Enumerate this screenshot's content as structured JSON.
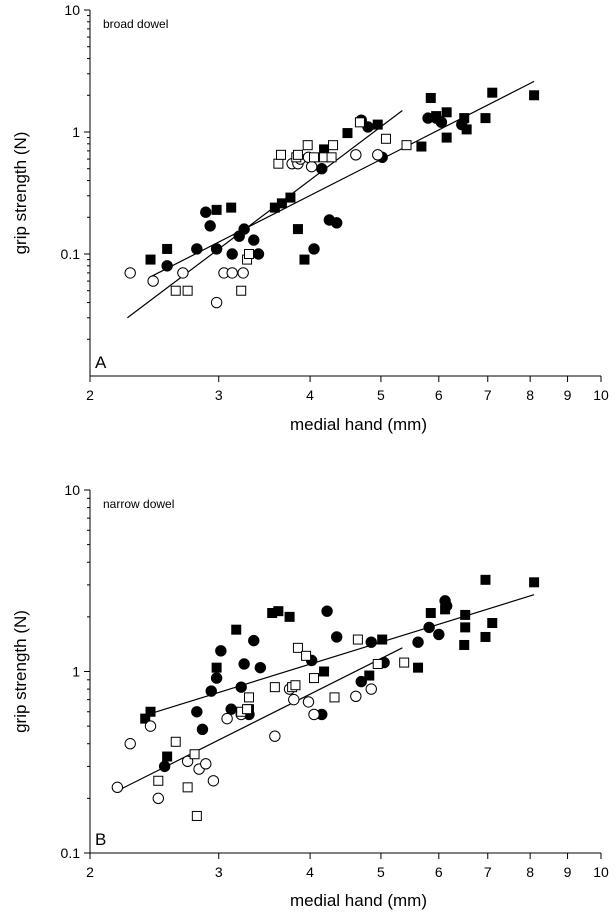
{
  "chart_data": [
    {
      "type": "scatter",
      "title": "broad dowel",
      "panel_label": "A",
      "xlabel": "medial hand (mm)",
      "ylabel": "grip strength (N)",
      "xscale": "log",
      "yscale": "log",
      "xlim": [
        2,
        10
      ],
      "ylim": [
        0.01,
        10
      ],
      "x_ticks": [
        2,
        3,
        4,
        5,
        6,
        7,
        8,
        9,
        10
      ],
      "y_ticks": [
        0.1,
        1,
        10
      ],
      "y_tick_labels": [
        "0.1",
        "1",
        "10"
      ],
      "series": [
        {
          "marker": "filled-square",
          "points": [
            [
              2.42,
              0.09
            ],
            [
              2.55,
              0.11
            ],
            [
              2.98,
              0.23
            ],
            [
              3.12,
              0.24
            ],
            [
              3.58,
              0.24
            ],
            [
              3.66,
              0.26
            ],
            [
              3.76,
              0.29
            ],
            [
              3.85,
              0.16
            ],
            [
              3.93,
              0.09
            ],
            [
              4.18,
              0.72
            ],
            [
              4.5,
              0.98
            ],
            [
              4.95,
              1.15
            ],
            [
              5.68,
              0.76
            ],
            [
              5.85,
              1.9
            ],
            [
              5.95,
              1.35
            ],
            [
              6.15,
              0.9
            ],
            [
              6.15,
              1.45
            ],
            [
              6.5,
              1.3
            ],
            [
              6.55,
              1.05
            ],
            [
              6.95,
              1.3
            ],
            [
              7.1,
              2.1
            ],
            [
              8.1,
              2.0
            ]
          ]
        },
        {
          "marker": "filled-circle",
          "points": [
            [
              2.55,
              0.08
            ],
            [
              2.8,
              0.11
            ],
            [
              2.88,
              0.22
            ],
            [
              2.92,
              0.17
            ],
            [
              2.98,
              0.11
            ],
            [
              3.13,
              0.1
            ],
            [
              3.2,
              0.14
            ],
            [
              3.25,
              0.16
            ],
            [
              3.35,
              0.13
            ],
            [
              3.4,
              0.1
            ],
            [
              4.05,
              0.11
            ],
            [
              4.15,
              0.5
            ],
            [
              4.25,
              0.19
            ],
            [
              4.35,
              0.18
            ],
            [
              4.7,
              1.25
            ],
            [
              4.8,
              1.1
            ],
            [
              5.02,
              0.62
            ],
            [
              5.8,
              1.3
            ],
            [
              5.95,
              1.3
            ],
            [
              6.05,
              1.2
            ],
            [
              6.45,
              1.15
            ]
          ]
        },
        {
          "marker": "open-circle",
          "points": [
            [
              2.27,
              0.07
            ],
            [
              2.44,
              0.06
            ],
            [
              2.68,
              0.07
            ],
            [
              2.98,
              0.04
            ],
            [
              3.05,
              0.07
            ],
            [
              3.13,
              0.07
            ],
            [
              3.24,
              0.07
            ],
            [
              3.78,
              0.55
            ],
            [
              3.85,
              0.55
            ],
            [
              3.88,
              0.6
            ],
            [
              3.98,
              0.62
            ],
            [
              4.02,
              0.52
            ],
            [
              4.62,
              0.65
            ],
            [
              4.95,
              0.65
            ]
          ]
        },
        {
          "marker": "open-square",
          "points": [
            [
              2.62,
              0.05
            ],
            [
              2.72,
              0.05
            ],
            [
              3.22,
              0.05
            ],
            [
              3.28,
              0.09
            ],
            [
              3.3,
              0.1
            ],
            [
              3.62,
              0.55
            ],
            [
              3.65,
              0.65
            ],
            [
              3.83,
              0.62
            ],
            [
              3.85,
              0.65
            ],
            [
              3.97,
              0.78
            ],
            [
              4.05,
              0.62
            ],
            [
              4.18,
              0.62
            ],
            [
              4.28,
              0.62
            ],
            [
              4.3,
              0.78
            ],
            [
              4.68,
              1.2
            ],
            [
              5.08,
              0.88
            ],
            [
              5.42,
              0.78
            ]
          ]
        }
      ],
      "fit_lines": [
        {
          "x": [
            2.42,
            8.1
          ],
          "y": [
            0.065,
            2.6
          ]
        },
        {
          "x": [
            2.25,
            5.35
          ],
          "y": [
            0.03,
            1.5
          ]
        }
      ]
    },
    {
      "type": "scatter",
      "title": "narrow dowel",
      "panel_label": "B",
      "xlabel": "medial hand (mm)",
      "ylabel": "grip strength (N)",
      "xscale": "log",
      "yscale": "log",
      "xlim": [
        2,
        10
      ],
      "ylim": [
        0.1,
        10
      ],
      "x_ticks": [
        2,
        3,
        4,
        5,
        6,
        7,
        8,
        9,
        10
      ],
      "y_ticks": [
        0.1,
        1,
        10
      ],
      "y_tick_labels": [
        "0.1",
        "1",
        "10"
      ],
      "series": [
        {
          "marker": "filled-square",
          "points": [
            [
              2.38,
              0.55
            ],
            [
              2.42,
              0.6
            ],
            [
              2.55,
              0.34
            ],
            [
              2.98,
              1.05
            ],
            [
              3.17,
              1.7
            ],
            [
              3.3,
              0.62
            ],
            [
              3.55,
              2.1
            ],
            [
              3.62,
              2.15
            ],
            [
              3.75,
              2.0
            ],
            [
              4.18,
              1.0
            ],
            [
              4.82,
              0.95
            ],
            [
              5.02,
              1.5
            ],
            [
              5.62,
              1.05
            ],
            [
              5.85,
              2.1
            ],
            [
              6.12,
              2.2
            ],
            [
              6.5,
              1.4
            ],
            [
              6.52,
              1.75
            ],
            [
              6.52,
              2.05
            ],
            [
              6.95,
              3.2
            ],
            [
              6.95,
              1.55
            ],
            [
              7.1,
              1.85
            ],
            [
              8.1,
              3.1
            ]
          ]
        },
        {
          "marker": "filled-circle",
          "points": [
            [
              2.53,
              0.3
            ],
            [
              2.8,
              0.6
            ],
            [
              2.85,
              0.48
            ],
            [
              2.93,
              0.78
            ],
            [
              2.98,
              0.92
            ],
            [
              3.02,
              1.3
            ],
            [
              3.12,
              0.62
            ],
            [
              3.22,
              0.82
            ],
            [
              3.25,
              1.1
            ],
            [
              3.3,
              0.58
            ],
            [
              3.35,
              1.48
            ],
            [
              3.42,
              1.05
            ],
            [
              4.02,
              1.15
            ],
            [
              4.15,
              0.58
            ],
            [
              4.22,
              2.15
            ],
            [
              4.35,
              1.55
            ],
            [
              4.7,
              0.88
            ],
            [
              4.85,
              1.45
            ],
            [
              5.05,
              1.12
            ],
            [
              5.62,
              1.45
            ],
            [
              5.82,
              1.75
            ],
            [
              6.0,
              1.6
            ],
            [
              6.12,
              2.45
            ],
            [
              6.15,
              2.3
            ]
          ]
        },
        {
          "marker": "open-circle",
          "points": [
            [
              2.18,
              0.23
            ],
            [
              2.27,
              0.4
            ],
            [
              2.42,
              0.5
            ],
            [
              2.48,
              0.2
            ],
            [
              2.72,
              0.32
            ],
            [
              2.82,
              0.29
            ],
            [
              2.88,
              0.31
            ],
            [
              2.95,
              0.25
            ],
            [
              3.08,
              0.55
            ],
            [
              3.22,
              0.58
            ],
            [
              3.58,
              0.44
            ],
            [
              3.75,
              0.8
            ],
            [
              3.8,
              0.7
            ],
            [
              3.98,
              0.68
            ],
            [
              4.05,
              0.58
            ],
            [
              4.62,
              0.73
            ],
            [
              4.85,
              0.8
            ]
          ]
        },
        {
          "marker": "open-square",
          "points": [
            [
              2.48,
              0.25
            ],
            [
              2.62,
              0.41
            ],
            [
              2.72,
              0.23
            ],
            [
              2.78,
              0.35
            ],
            [
              2.8,
              0.16
            ],
            [
              3.22,
              0.6
            ],
            [
              3.28,
              0.62
            ],
            [
              3.3,
              0.72
            ],
            [
              3.58,
              0.82
            ],
            [
              3.78,
              0.82
            ],
            [
              3.82,
              0.84
            ],
            [
              3.85,
              1.35
            ],
            [
              3.95,
              1.22
            ],
            [
              4.05,
              0.92
            ],
            [
              4.32,
              0.72
            ],
            [
              4.65,
              1.5
            ],
            [
              4.95,
              1.1
            ],
            [
              5.38,
              1.12
            ]
          ]
        }
      ],
      "fit_lines": [
        {
          "x": [
            2.4,
            8.1
          ],
          "y": [
            0.58,
            2.65
          ]
        },
        {
          "x": [
            2.18,
            5.35
          ],
          "y": [
            0.22,
            1.35
          ]
        }
      ]
    }
  ]
}
